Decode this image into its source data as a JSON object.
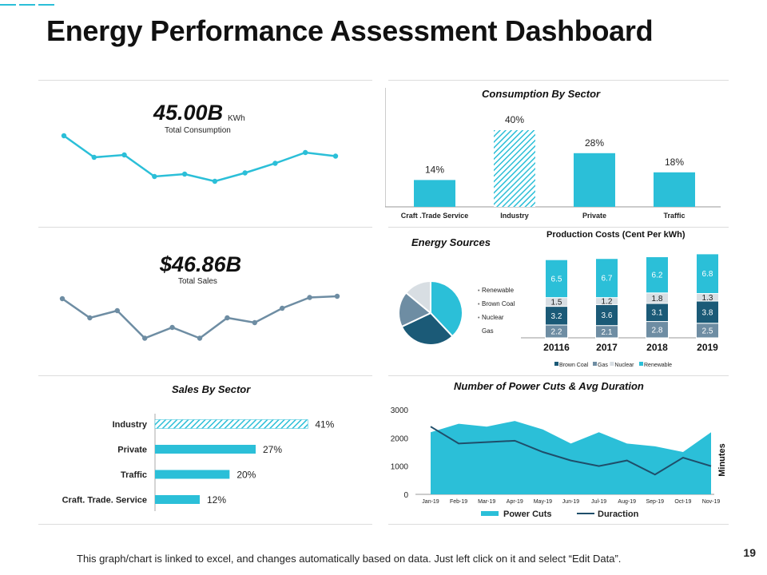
{
  "page": {
    "title": "Energy Performance Assessment Dashboard",
    "page_number": "19",
    "footer": "This graph/chart is linked to excel, and changes automatically based on data. Just left click on it and select “Edit Data”."
  },
  "colors": {
    "teal": "#2bbfd8",
    "slate": "#6e8da3",
    "navy": "#1b5a77",
    "light": "#d8dee3"
  },
  "kpi_consumption": {
    "value": "45.00B",
    "unit": "KWh",
    "label": "Total Consumption"
  },
  "kpi_sales": {
    "value": "$46.86B",
    "label": "Total Sales"
  },
  "chart_data": [
    {
      "id": "consumption_sparkline",
      "type": "line",
      "title": "Total Consumption",
      "values": [
        80,
        62,
        64,
        46,
        48,
        42,
        49,
        57,
        66,
        63
      ],
      "ylim": [
        20,
        100
      ]
    },
    {
      "id": "sales_sparkline",
      "type": "line",
      "title": "Total Sales",
      "values": [
        68,
        52,
        58,
        35,
        44,
        35,
        52,
        48,
        60,
        69,
        70
      ],
      "ylim": [
        20,
        100
      ]
    },
    {
      "id": "consumption_by_sector",
      "type": "bar",
      "title": "Consumption By Sector",
      "categories": [
        "Craft .Trade Service",
        "Industry",
        "Private",
        "Traffic"
      ],
      "values": [
        14,
        40,
        28,
        18
      ],
      "labels": [
        "14%",
        "40%",
        "28%",
        "18%"
      ],
      "ylim": [
        0,
        50
      ]
    },
    {
      "id": "energy_sources",
      "type": "pie",
      "title": "Energy Sources",
      "legend": [
        "Renewable",
        "Brown Coal",
        "Nuclear",
        "Gas"
      ],
      "values": [
        38,
        30,
        18,
        14
      ]
    },
    {
      "id": "production_costs",
      "type": "bar",
      "stacked": true,
      "title": "Production Costs (Cent Per kWh)",
      "categories": [
        "20116",
        "2017",
        "2018",
        "2019"
      ],
      "series": [
        {
          "name": "Gas",
          "values": [
            2.2,
            2.1,
            2.8,
            2.5
          ]
        },
        {
          "name": "Brown Coal",
          "values": [
            3.2,
            3.6,
            3.1,
            3.8
          ]
        },
        {
          "name": "Nuclear",
          "values": [
            1.5,
            1.2,
            1.8,
            1.3
          ]
        },
        {
          "name": "Renewable",
          "values": [
            6.5,
            6.7,
            6.2,
            6.8
          ]
        }
      ],
      "legend": [
        "Brown Coal",
        "Gas",
        "Nuclear",
        "Renewable"
      ]
    },
    {
      "id": "sales_by_sector",
      "type": "bar",
      "orientation": "horizontal",
      "title": "Sales By Sector",
      "categories": [
        "Industry",
        "Private",
        "Traffic",
        "Craft. Trade. Service"
      ],
      "values": [
        41,
        27,
        20,
        12
      ],
      "labels": [
        "41%",
        "27%",
        "20%",
        "12%"
      ],
      "xlim": [
        0,
        45
      ]
    },
    {
      "id": "power_cuts",
      "type": "area",
      "title": "Number of Power Cuts & Avg Duration",
      "x": [
        "Jan-19",
        "Feb-19",
        "Mar-19",
        "Apr-19",
        "May-19",
        "Jun-19",
        "Jul-19",
        "Aug-19",
        "Sep-19",
        "Oct-19",
        "Nov-19"
      ],
      "series": [
        {
          "name": "Power Cuts",
          "type": "area",
          "values": [
            2200,
            2500,
            2400,
            2600,
            2300,
            1800,
            2200,
            1800,
            1700,
            1500,
            2200
          ]
        },
        {
          "name": "Duraction",
          "type": "line",
          "values": [
            2400,
            1800,
            1850,
            1900,
            1500,
            1200,
            1000,
            1200,
            700,
            1300,
            1000
          ]
        }
      ],
      "yticks": [
        "0",
        "1000",
        "2000",
        "3000"
      ],
      "ylim": [
        0,
        3000
      ],
      "y2label": "Minutes"
    }
  ]
}
